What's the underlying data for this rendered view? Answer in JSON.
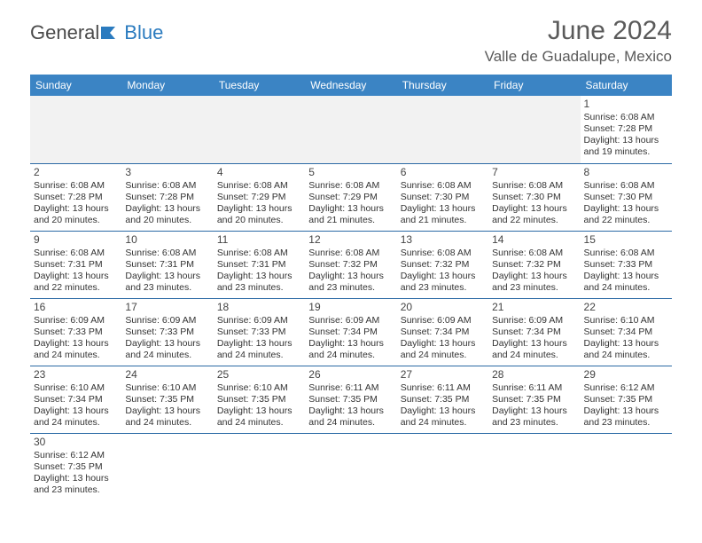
{
  "logo": {
    "part1": "General",
    "part2": "Blue"
  },
  "title": "June 2024",
  "location": "Valle de Guadalupe, Mexico",
  "colors": {
    "header_bg": "#3b84c4",
    "header_text": "#ffffff",
    "border": "#2b6aa5",
    "logo_gray": "#4a4a4a",
    "logo_blue": "#2b7bbf",
    "empty_row_bg": "#f2f2f2"
  },
  "days_of_week": [
    "Sunday",
    "Monday",
    "Tuesday",
    "Wednesday",
    "Thursday",
    "Friday",
    "Saturday"
  ],
  "weeks": [
    [
      null,
      null,
      null,
      null,
      null,
      null,
      {
        "n": "1",
        "sr": "6:08 AM",
        "ss": "7:28 PM",
        "dl": "13 hours and 19 minutes."
      }
    ],
    [
      {
        "n": "2",
        "sr": "6:08 AM",
        "ss": "7:28 PM",
        "dl": "13 hours and 20 minutes."
      },
      {
        "n": "3",
        "sr": "6:08 AM",
        "ss": "7:28 PM",
        "dl": "13 hours and 20 minutes."
      },
      {
        "n": "4",
        "sr": "6:08 AM",
        "ss": "7:29 PM",
        "dl": "13 hours and 20 minutes."
      },
      {
        "n": "5",
        "sr": "6:08 AM",
        "ss": "7:29 PM",
        "dl": "13 hours and 21 minutes."
      },
      {
        "n": "6",
        "sr": "6:08 AM",
        "ss": "7:30 PM",
        "dl": "13 hours and 21 minutes."
      },
      {
        "n": "7",
        "sr": "6:08 AM",
        "ss": "7:30 PM",
        "dl": "13 hours and 22 minutes."
      },
      {
        "n": "8",
        "sr": "6:08 AM",
        "ss": "7:30 PM",
        "dl": "13 hours and 22 minutes."
      }
    ],
    [
      {
        "n": "9",
        "sr": "6:08 AM",
        "ss": "7:31 PM",
        "dl": "13 hours and 22 minutes."
      },
      {
        "n": "10",
        "sr": "6:08 AM",
        "ss": "7:31 PM",
        "dl": "13 hours and 23 minutes."
      },
      {
        "n": "11",
        "sr": "6:08 AM",
        "ss": "7:31 PM",
        "dl": "13 hours and 23 minutes."
      },
      {
        "n": "12",
        "sr": "6:08 AM",
        "ss": "7:32 PM",
        "dl": "13 hours and 23 minutes."
      },
      {
        "n": "13",
        "sr": "6:08 AM",
        "ss": "7:32 PM",
        "dl": "13 hours and 23 minutes."
      },
      {
        "n": "14",
        "sr": "6:08 AM",
        "ss": "7:32 PM",
        "dl": "13 hours and 23 minutes."
      },
      {
        "n": "15",
        "sr": "6:08 AM",
        "ss": "7:33 PM",
        "dl": "13 hours and 24 minutes."
      }
    ],
    [
      {
        "n": "16",
        "sr": "6:09 AM",
        "ss": "7:33 PM",
        "dl": "13 hours and 24 minutes."
      },
      {
        "n": "17",
        "sr": "6:09 AM",
        "ss": "7:33 PM",
        "dl": "13 hours and 24 minutes."
      },
      {
        "n": "18",
        "sr": "6:09 AM",
        "ss": "7:33 PM",
        "dl": "13 hours and 24 minutes."
      },
      {
        "n": "19",
        "sr": "6:09 AM",
        "ss": "7:34 PM",
        "dl": "13 hours and 24 minutes."
      },
      {
        "n": "20",
        "sr": "6:09 AM",
        "ss": "7:34 PM",
        "dl": "13 hours and 24 minutes."
      },
      {
        "n": "21",
        "sr": "6:09 AM",
        "ss": "7:34 PM",
        "dl": "13 hours and 24 minutes."
      },
      {
        "n": "22",
        "sr": "6:10 AM",
        "ss": "7:34 PM",
        "dl": "13 hours and 24 minutes."
      }
    ],
    [
      {
        "n": "23",
        "sr": "6:10 AM",
        "ss": "7:34 PM",
        "dl": "13 hours and 24 minutes."
      },
      {
        "n": "24",
        "sr": "6:10 AM",
        "ss": "7:35 PM",
        "dl": "13 hours and 24 minutes."
      },
      {
        "n": "25",
        "sr": "6:10 AM",
        "ss": "7:35 PM",
        "dl": "13 hours and 24 minutes."
      },
      {
        "n": "26",
        "sr": "6:11 AM",
        "ss": "7:35 PM",
        "dl": "13 hours and 24 minutes."
      },
      {
        "n": "27",
        "sr": "6:11 AM",
        "ss": "7:35 PM",
        "dl": "13 hours and 24 minutes."
      },
      {
        "n": "28",
        "sr": "6:11 AM",
        "ss": "7:35 PM",
        "dl": "13 hours and 23 minutes."
      },
      {
        "n": "29",
        "sr": "6:12 AM",
        "ss": "7:35 PM",
        "dl": "13 hours and 23 minutes."
      }
    ],
    [
      {
        "n": "30",
        "sr": "6:12 AM",
        "ss": "7:35 PM",
        "dl": "13 hours and 23 minutes."
      },
      null,
      null,
      null,
      null,
      null,
      null
    ]
  ],
  "labels": {
    "sunrise": "Sunrise:",
    "sunset": "Sunset:",
    "daylight": "Daylight:"
  }
}
